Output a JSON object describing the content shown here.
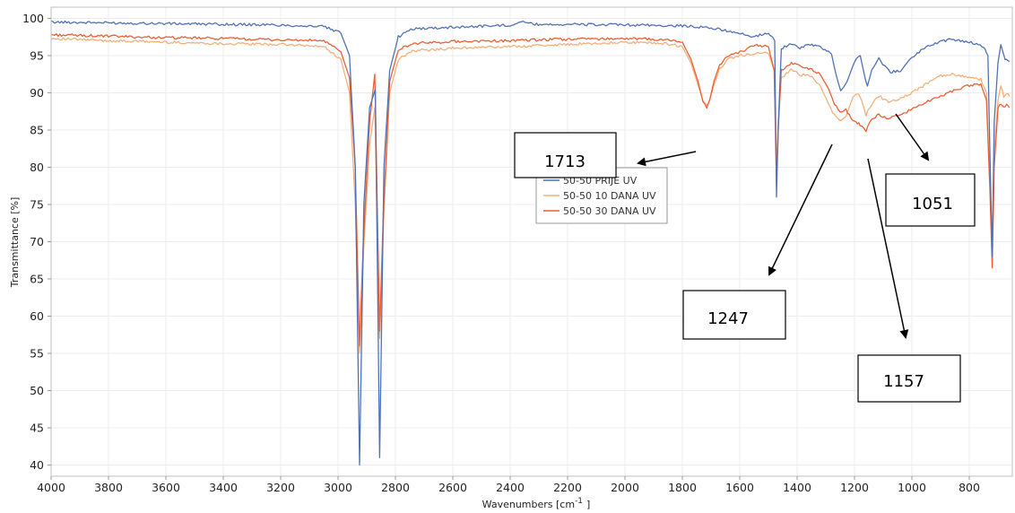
{
  "chart_data": {
    "type": "line",
    "xlabel": "Wavenumbers [cm",
    "xlabel_sup": "-1",
    "xlabel_close": "]",
    "ylabel": "Transmittance [%]",
    "xlim": [
      4000,
      650
    ],
    "x_reversed": true,
    "ylim": [
      38.5,
      101.5
    ],
    "x_ticks": [
      "4000",
      "3800",
      "3600",
      "3400",
      "3200",
      "3000",
      "2800",
      "2600",
      "2400",
      "2200",
      "2000",
      "1800",
      "1600",
      "1400",
      "1200",
      "1000",
      "800"
    ],
    "y_ticks": [
      "100",
      "95",
      "90",
      "85",
      "80",
      "75",
      "70",
      "65",
      "60",
      "55",
      "50",
      "45",
      "40"
    ],
    "grid": true,
    "legend_position": "center",
    "series": [
      {
        "name": "50-50 PRIJE UV",
        "color": "#4f72b5",
        "points": [
          [
            4000,
            99.5
          ],
          [
            3800,
            99.4
          ],
          [
            3600,
            99.3
          ],
          [
            3400,
            99.2
          ],
          [
            3200,
            99.1
          ],
          [
            3050,
            98.9
          ],
          [
            2990,
            98
          ],
          [
            2960,
            95
          ],
          [
            2940,
            80
          ],
          [
            2925,
            40
          ],
          [
            2910,
            75
          ],
          [
            2890,
            88
          ],
          [
            2870,
            90.5
          ],
          [
            2855,
            41
          ],
          [
            2840,
            80
          ],
          [
            2820,
            93
          ],
          [
            2790,
            97.5
          ],
          [
            2740,
            98.6
          ],
          [
            2600,
            98.8
          ],
          [
            2400,
            99.1
          ],
          [
            2360,
            99.6
          ],
          [
            2320,
            99.2
          ],
          [
            2200,
            99.2
          ],
          [
            2000,
            99.1
          ],
          [
            1800,
            99
          ],
          [
            1700,
            98.7
          ],
          [
            1620,
            98.2
          ],
          [
            1560,
            97.5
          ],
          [
            1500,
            98
          ],
          [
            1478,
            97
          ],
          [
            1472,
            76
          ],
          [
            1466,
            85
          ],
          [
            1455,
            96
          ],
          [
            1420,
            96.6
          ],
          [
            1390,
            95.9
          ],
          [
            1360,
            96.6
          ],
          [
            1320,
            96.1
          ],
          [
            1280,
            95.2
          ],
          [
            1262,
            92
          ],
          [
            1248,
            90.2
          ],
          [
            1225,
            91.6
          ],
          [
            1200,
            94.2
          ],
          [
            1180,
            95
          ],
          [
            1162,
            91.8
          ],
          [
            1155,
            90.9
          ],
          [
            1140,
            93
          ],
          [
            1115,
            94.6
          ],
          [
            1095,
            93.5
          ],
          [
            1075,
            92.8
          ],
          [
            1040,
            93
          ],
          [
            1000,
            94.7
          ],
          [
            950,
            96.2
          ],
          [
            900,
            96.9
          ],
          [
            860,
            97.2
          ],
          [
            800,
            96.8
          ],
          [
            750,
            96.2
          ],
          [
            735,
            95
          ],
          [
            728,
            82
          ],
          [
            720,
            68
          ],
          [
            713,
            86
          ],
          [
            700,
            94
          ],
          [
            690,
            96.5
          ],
          [
            683,
            95.5
          ],
          [
            675,
            94.5
          ],
          [
            660,
            94.2
          ]
        ]
      },
      {
        "name": "50-50 10 DANA UV",
        "color": "#f4b07a",
        "points": [
          [
            4000,
            97.3
          ],
          [
            3800,
            97
          ],
          [
            3600,
            96.8
          ],
          [
            3400,
            96.6
          ],
          [
            3200,
            96.5
          ],
          [
            3050,
            96.2
          ],
          [
            2990,
            94.5
          ],
          [
            2960,
            90
          ],
          [
            2940,
            75
          ],
          [
            2925,
            55
          ],
          [
            2912,
            68
          ],
          [
            2890,
            83
          ],
          [
            2872,
            88
          ],
          [
            2855,
            57
          ],
          [
            2842,
            72
          ],
          [
            2820,
            90
          ],
          [
            2790,
            94.5
          ],
          [
            2740,
            95.6
          ],
          [
            2600,
            96
          ],
          [
            2400,
            96.2
          ],
          [
            2200,
            96.5
          ],
          [
            2000,
            96.8
          ],
          [
            1850,
            96.6
          ],
          [
            1800,
            96.2
          ],
          [
            1770,
            94
          ],
          [
            1745,
            91
          ],
          [
            1728,
            89
          ],
          [
            1715,
            88.2
          ],
          [
            1705,
            89
          ],
          [
            1690,
            91
          ],
          [
            1670,
            93.2
          ],
          [
            1640,
            94.5
          ],
          [
            1600,
            95
          ],
          [
            1540,
            95.3
          ],
          [
            1500,
            95.3
          ],
          [
            1480,
            93
          ],
          [
            1472,
            80
          ],
          [
            1466,
            86
          ],
          [
            1455,
            92
          ],
          [
            1420,
            93.2
          ],
          [
            1390,
            92.3
          ],
          [
            1360,
            92.5
          ],
          [
            1320,
            91
          ],
          [
            1290,
            88.5
          ],
          [
            1270,
            87
          ],
          [
            1250,
            86.3
          ],
          [
            1230,
            86.8
          ],
          [
            1205,
            89.5
          ],
          [
            1190,
            90
          ],
          [
            1175,
            89
          ],
          [
            1160,
            87
          ],
          [
            1140,
            88.5
          ],
          [
            1115,
            89.6
          ],
          [
            1095,
            89
          ],
          [
            1075,
            88.8
          ],
          [
            1040,
            89.2
          ],
          [
            1000,
            90
          ],
          [
            950,
            91.2
          ],
          [
            900,
            92.3
          ],
          [
            860,
            92.5
          ],
          [
            800,
            92
          ],
          [
            760,
            91.8
          ],
          [
            740,
            90
          ],
          [
            728,
            78
          ],
          [
            720,
            70
          ],
          [
            713,
            82
          ],
          [
            700,
            89
          ],
          [
            690,
            91
          ],
          [
            680,
            89.5
          ],
          [
            670,
            90
          ],
          [
            660,
            89.5
          ]
        ]
      },
      {
        "name": "50-50 30 DANA UV",
        "color": "#ec5f36",
        "points": [
          [
            4000,
            97.8
          ],
          [
            3800,
            97.6
          ],
          [
            3600,
            97.4
          ],
          [
            3400,
            97.3
          ],
          [
            3200,
            97.1
          ],
          [
            3050,
            97
          ],
          [
            2990,
            95.5
          ],
          [
            2960,
            92
          ],
          [
            2940,
            80
          ],
          [
            2925,
            56
          ],
          [
            2912,
            70
          ],
          [
            2890,
            86
          ],
          [
            2872,
            92.5
          ],
          [
            2855,
            58
          ],
          [
            2842,
            74
          ],
          [
            2820,
            91.5
          ],
          [
            2790,
            95.8
          ],
          [
            2740,
            96.6
          ],
          [
            2600,
            96.9
          ],
          [
            2400,
            97
          ],
          [
            2200,
            97.2
          ],
          [
            2000,
            97.3
          ],
          [
            1850,
            97.1
          ],
          [
            1800,
            96.8
          ],
          [
            1770,
            94.5
          ],
          [
            1745,
            91.5
          ],
          [
            1728,
            88.8
          ],
          [
            1715,
            88
          ],
          [
            1705,
            89
          ],
          [
            1690,
            91.5
          ],
          [
            1670,
            93.8
          ],
          [
            1640,
            95
          ],
          [
            1600,
            95.5
          ],
          [
            1540,
            96.4
          ],
          [
            1500,
            96.2
          ],
          [
            1480,
            93
          ],
          [
            1472,
            78
          ],
          [
            1466,
            85
          ],
          [
            1455,
            93
          ],
          [
            1420,
            94
          ],
          [
            1390,
            93.6
          ],
          [
            1360,
            93.3
          ],
          [
            1320,
            92.5
          ],
          [
            1290,
            90.5
          ],
          [
            1270,
            88.5
          ],
          [
            1250,
            87.5
          ],
          [
            1230,
            87.8
          ],
          [
            1205,
            86.2
          ],
          [
            1190,
            86
          ],
          [
            1175,
            85.5
          ],
          [
            1160,
            84.8
          ],
          [
            1140,
            86.6
          ],
          [
            1115,
            87
          ],
          [
            1095,
            86.7
          ],
          [
            1075,
            86.6
          ],
          [
            1040,
            87
          ],
          [
            1000,
            87.8
          ],
          [
            950,
            88.8
          ],
          [
            900,
            89.5
          ],
          [
            860,
            90.2
          ],
          [
            800,
            91
          ],
          [
            760,
            91.2
          ],
          [
            740,
            89
          ],
          [
            728,
            77
          ],
          [
            720,
            66.5
          ],
          [
            713,
            80
          ],
          [
            700,
            88
          ],
          [
            690,
            88.5
          ],
          [
            680,
            88
          ],
          [
            670,
            88.5
          ],
          [
            660,
            88
          ]
        ]
      }
    ],
    "annotations": [
      {
        "label": "1713"
      },
      {
        "label": "1051"
      },
      {
        "label": "1247"
      },
      {
        "label": "1157"
      }
    ]
  }
}
